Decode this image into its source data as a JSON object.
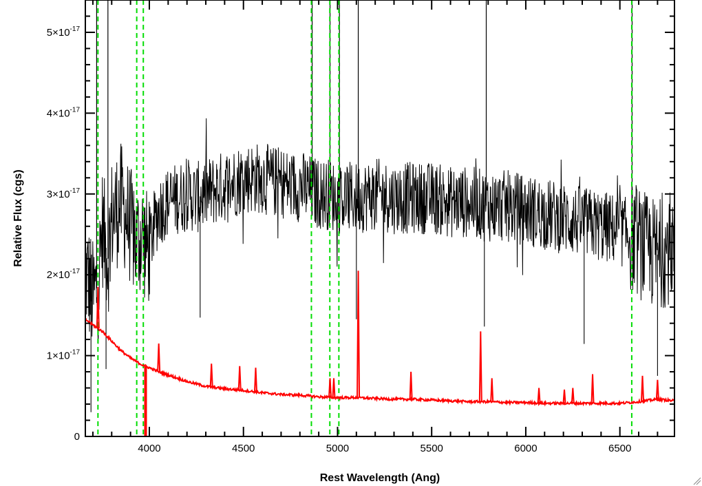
{
  "chart_data": {
    "type": "line",
    "title": "",
    "xlabel": "Rest Wavelength (Ang)",
    "ylabel": "Relative Flux (cgs)",
    "xlim": [
      3660,
      6790
    ],
    "ylim": [
      0,
      5.4e-17
    ],
    "x_ticks": [
      4000,
      4500,
      5000,
      5500,
      6000,
      6500
    ],
    "x_tick_labels": [
      "4000",
      "4500",
      "5000",
      "5500",
      "6000",
      "6500"
    ],
    "y_ticks": [
      0,
      1e-17,
      2e-17,
      3e-17,
      4e-17,
      5e-17
    ],
    "y_tick_labels": [
      {
        "mantissa": "0",
        "exponent": ""
      },
      {
        "mantissa": "1×10",
        "exponent": "-17"
      },
      {
        "mantissa": "2×10",
        "exponent": "-17"
      },
      {
        "mantissa": "3×10",
        "exponent": "-17"
      },
      {
        "mantissa": "4×10",
        "exponent": "-17"
      },
      {
        "mantissa": "5×10",
        "exponent": "-17"
      }
    ],
    "grid": false,
    "series": [
      {
        "color": "#000000",
        "x": [
          3670,
          3700,
          3730,
          3750,
          3780,
          3800,
          3850,
          3900,
          3930,
          3960,
          3990,
          4050,
          4100,
          4150,
          4200,
          4250,
          4300,
          4350,
          4400,
          4450,
          4500,
          4550,
          4600,
          4650,
          4700,
          4750,
          4800,
          4850,
          4900,
          4950,
          5000,
          5050,
          5100,
          5200,
          5300,
          5400,
          5500,
          5600,
          5700,
          5800,
          5900,
          6000,
          6100,
          6200,
          6300,
          6400,
          6500,
          6550,
          6600,
          6650,
          6700,
          6750,
          6780
        ],
        "y": [
          2e-17,
          1.7e-17,
          1.9e-17,
          2.6e-17,
          2.2e-17,
          2.7e-17,
          2.9e-17,
          2.6e-17,
          2.4e-17,
          2.5e-17,
          2.3e-17,
          2.8e-17,
          2.9e-17,
          2.95e-17,
          3e-17,
          2.95e-17,
          3e-17,
          3.05e-17,
          3.1e-17,
          3.15e-17,
          3.2e-17,
          3.2e-17,
          3.2e-17,
          3.15e-17,
          3.15e-17,
          3.1e-17,
          3.1e-17,
          3.05e-17,
          3e-17,
          3e-17,
          2.95e-17,
          2.95e-17,
          2.95e-17,
          3e-17,
          2.95e-17,
          2.95e-17,
          2.95e-17,
          2.9e-17,
          2.9e-17,
          2.85e-17,
          2.85e-17,
          2.8e-17,
          2.75e-17,
          2.7e-17,
          2.65e-17,
          2.6e-17,
          2.55e-17,
          2.5e-17,
          2.4e-17,
          2.3e-17,
          2.25e-17,
          2.3e-17,
          2.4e-17
        ]
      },
      {
        "color": "#ff0000",
        "x": [
          3660,
          3700,
          3750,
          3800,
          3850,
          3900,
          3950,
          4000,
          4050,
          4100,
          4200,
          4300,
          4400,
          4500,
          4600,
          4700,
          4800,
          4900,
          5000,
          5100,
          5200,
          5300,
          5400,
          5500,
          5600,
          5700,
          5800,
          5900,
          6000,
          6100,
          6200,
          6300,
          6400,
          6500,
          6600,
          6700,
          6790
        ],
        "y": [
          1.45e-17,
          1.38e-17,
          1.3e-17,
          1.18e-17,
          1.06e-17,
          9.7e-18,
          9e-18,
          8.5e-18,
          8e-18,
          7.6e-18,
          6.8e-18,
          6.2e-18,
          5.9e-18,
          5.7e-18,
          5.4e-18,
          5.2e-18,
          5.1e-18,
          4.9e-18,
          4.8e-18,
          4.8e-18,
          4.7e-18,
          4.6e-18,
          4.6e-18,
          4.5e-18,
          4.4e-18,
          4.3e-18,
          4.3e-18,
          4.2e-18,
          4.2e-18,
          4.1e-18,
          4.1e-18,
          4.1e-18,
          4.1e-18,
          4.1e-18,
          4.3e-18,
          4.6e-18,
          4.4e-18
        ]
      }
    ],
    "red_emission_lines": [
      {
        "x": 3727,
        "peak": 1.85e-17
      },
      {
        "x": 4050,
        "peak": 1.15e-17
      },
      {
        "x": 4330,
        "peak": 9e-18
      },
      {
        "x": 4480,
        "peak": 8.7e-18
      },
      {
        "x": 4565,
        "peak": 8.5e-18
      },
      {
        "x": 4960,
        "peak": 7.2e-18
      },
      {
        "x": 4980,
        "peak": 7.2e-18
      },
      {
        "x": 5110,
        "peak": 2.05e-17
      },
      {
        "x": 5390,
        "peak": 8e-18
      },
      {
        "x": 5760,
        "peak": 1.3e-17
      },
      {
        "x": 5820,
        "peak": 7.2e-18
      },
      {
        "x": 6070,
        "peak": 6e-18
      },
      {
        "x": 6205,
        "peak": 5.8e-18
      },
      {
        "x": 6250,
        "peak": 6e-18
      },
      {
        "x": 6355,
        "peak": 7.7e-18
      },
      {
        "x": 6620,
        "peak": 7.5e-18
      },
      {
        "x": 6700,
        "peak": 7e-18
      }
    ],
    "red_absorption_lines": [
      {
        "x": 3980,
        "depth": 0
      }
    ],
    "black_spikes_up": [
      3720,
      3780,
      4865,
      4960,
      5010,
      5110,
      5790,
      6565
    ],
    "black_spikes_down": [
      3690,
      3770,
      4270,
      5100,
      5780,
      6310,
      6700
    ],
    "marker_lines": {
      "color": "#00dd00",
      "style": "dashed",
      "x": [
        3727,
        3933,
        3968,
        4861,
        4959,
        5007,
        6563
      ]
    }
  }
}
